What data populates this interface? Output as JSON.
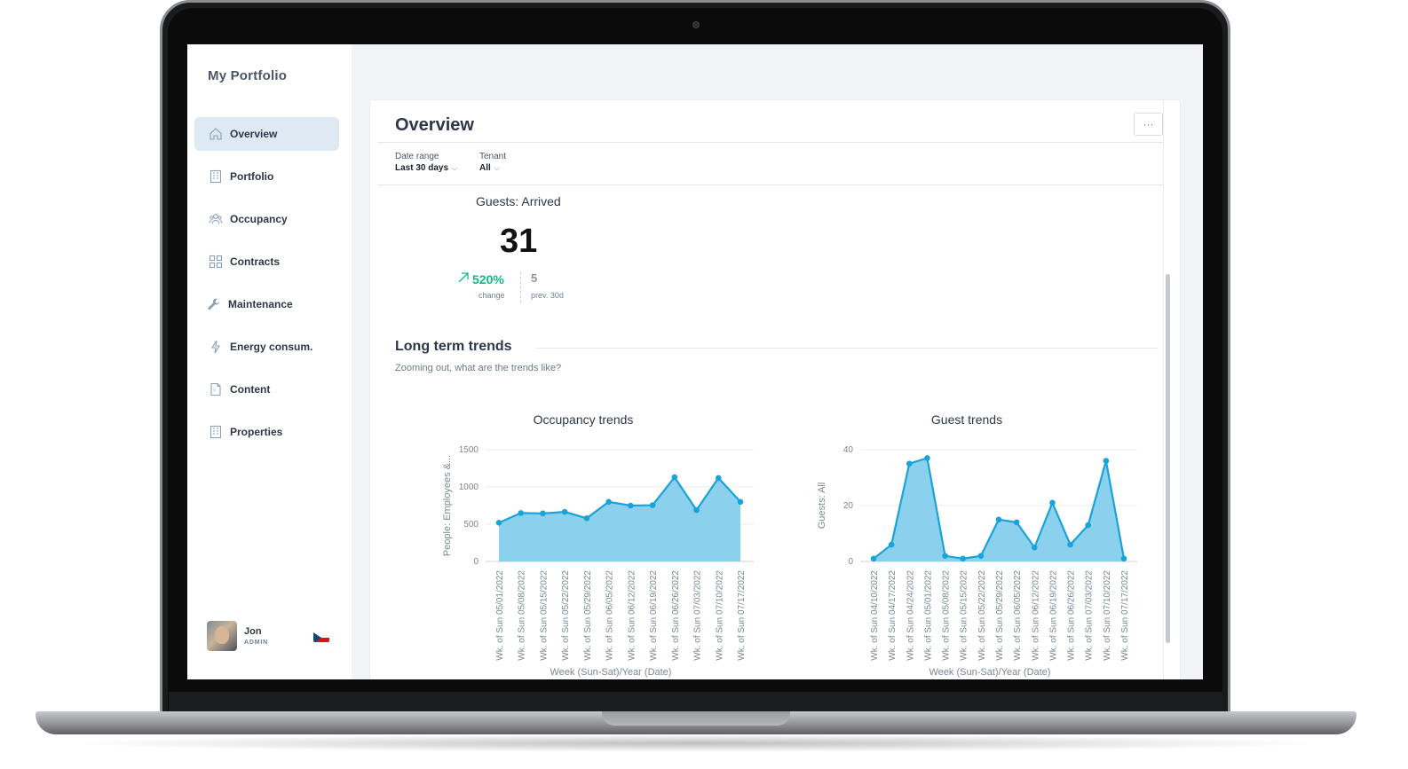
{
  "sidebar": {
    "brand": "My Portfolio",
    "items": [
      {
        "label": "Overview",
        "icon": "home-icon",
        "active": true
      },
      {
        "label": "Portfolio",
        "icon": "building-icon"
      },
      {
        "label": "Occupancy",
        "icon": "people-icon"
      },
      {
        "label": "Contracts",
        "icon": "grid-icon"
      },
      {
        "label": "Maintenance",
        "icon": "wrench-icon"
      },
      {
        "label": "Energy consum.",
        "icon": "lightning-icon"
      },
      {
        "label": "Content",
        "icon": "document-icon"
      },
      {
        "label": "Properties",
        "icon": "building-icon"
      }
    ],
    "user": {
      "name": "Jon",
      "role": "ADMIN",
      "flag": "czech-flag-icon"
    }
  },
  "main": {
    "title": "Overview",
    "more_label": "···",
    "filters": {
      "date_range": {
        "label": "Date range",
        "value": "Last 30 days"
      },
      "tenant": {
        "label": "Tenant",
        "value": "All"
      }
    },
    "kpi": {
      "title": "Guests: Arrived",
      "value": "31",
      "change": "520%",
      "change_label": "change",
      "prev": "5",
      "prev_label": "prev. 30d"
    },
    "section": {
      "title": "Long term trends",
      "subtitle": "Zooming out, what are the trends like?"
    }
  },
  "colors": {
    "area": "#85cdeb",
    "line": "#1aa3d9",
    "accent": "#10b981",
    "active_nav": "#dde9f3"
  },
  "chart_data": [
    {
      "type": "area",
      "title": "Occupancy trends",
      "xlabel": "Week (Sun-Sat)/Year (Date)",
      "ylabel": "People: Employees &...",
      "ylim": [
        0,
        1500
      ],
      "yticks": [
        0,
        500,
        1000,
        1500
      ],
      "categories": [
        "Wk. of Sun 05/01/2022",
        "Wk. of Sun 05/08/2022",
        "Wk. of Sun 05/15/2022",
        "Wk. of Sun 05/22/2022",
        "Wk. of Sun 05/29/2022",
        "Wk. of Sun 06/05/2022",
        "Wk. of Sun 06/12/2022",
        "Wk. of Sun 06/19/2022",
        "Wk. of Sun 06/26/2022",
        "Wk. of Sun 07/03/2022",
        "Wk. of Sun 07/10/2022",
        "Wk. of Sun 07/17/2022"
      ],
      "values": [
        520,
        650,
        645,
        665,
        580,
        800,
        750,
        755,
        1130,
        690,
        1120,
        800
      ]
    },
    {
      "type": "area",
      "title": "Guest trends",
      "xlabel": "Week (Sun-Sat)/Year (Date)",
      "ylabel": "Guests: All",
      "ylim": [
        0,
        40
      ],
      "yticks": [
        0,
        20,
        40
      ],
      "categories": [
        "Wk. of Sun 04/10/2022",
        "Wk. of Sun 04/17/2022",
        "Wk. of Sun 04/24/2022",
        "Wk. of Sun 05/01/2022",
        "Wk. of Sun 05/08/2022",
        "Wk. of Sun 05/15/2022",
        "Wk. of Sun 05/22/2022",
        "Wk. of Sun 05/29/2022",
        "Wk. of Sun 06/05/2022",
        "Wk. of Sun 06/12/2022",
        "Wk. of Sun 06/19/2022",
        "Wk. of Sun 06/26/2022",
        "Wk. of Sun 07/03/2022",
        "Wk. of Sun 07/10/2022",
        "Wk. of Sun 07/17/2022"
      ],
      "values": [
        1,
        6,
        35,
        37,
        2,
        1,
        2,
        15,
        14,
        5,
        21,
        6,
        13,
        36,
        1
      ]
    }
  ]
}
